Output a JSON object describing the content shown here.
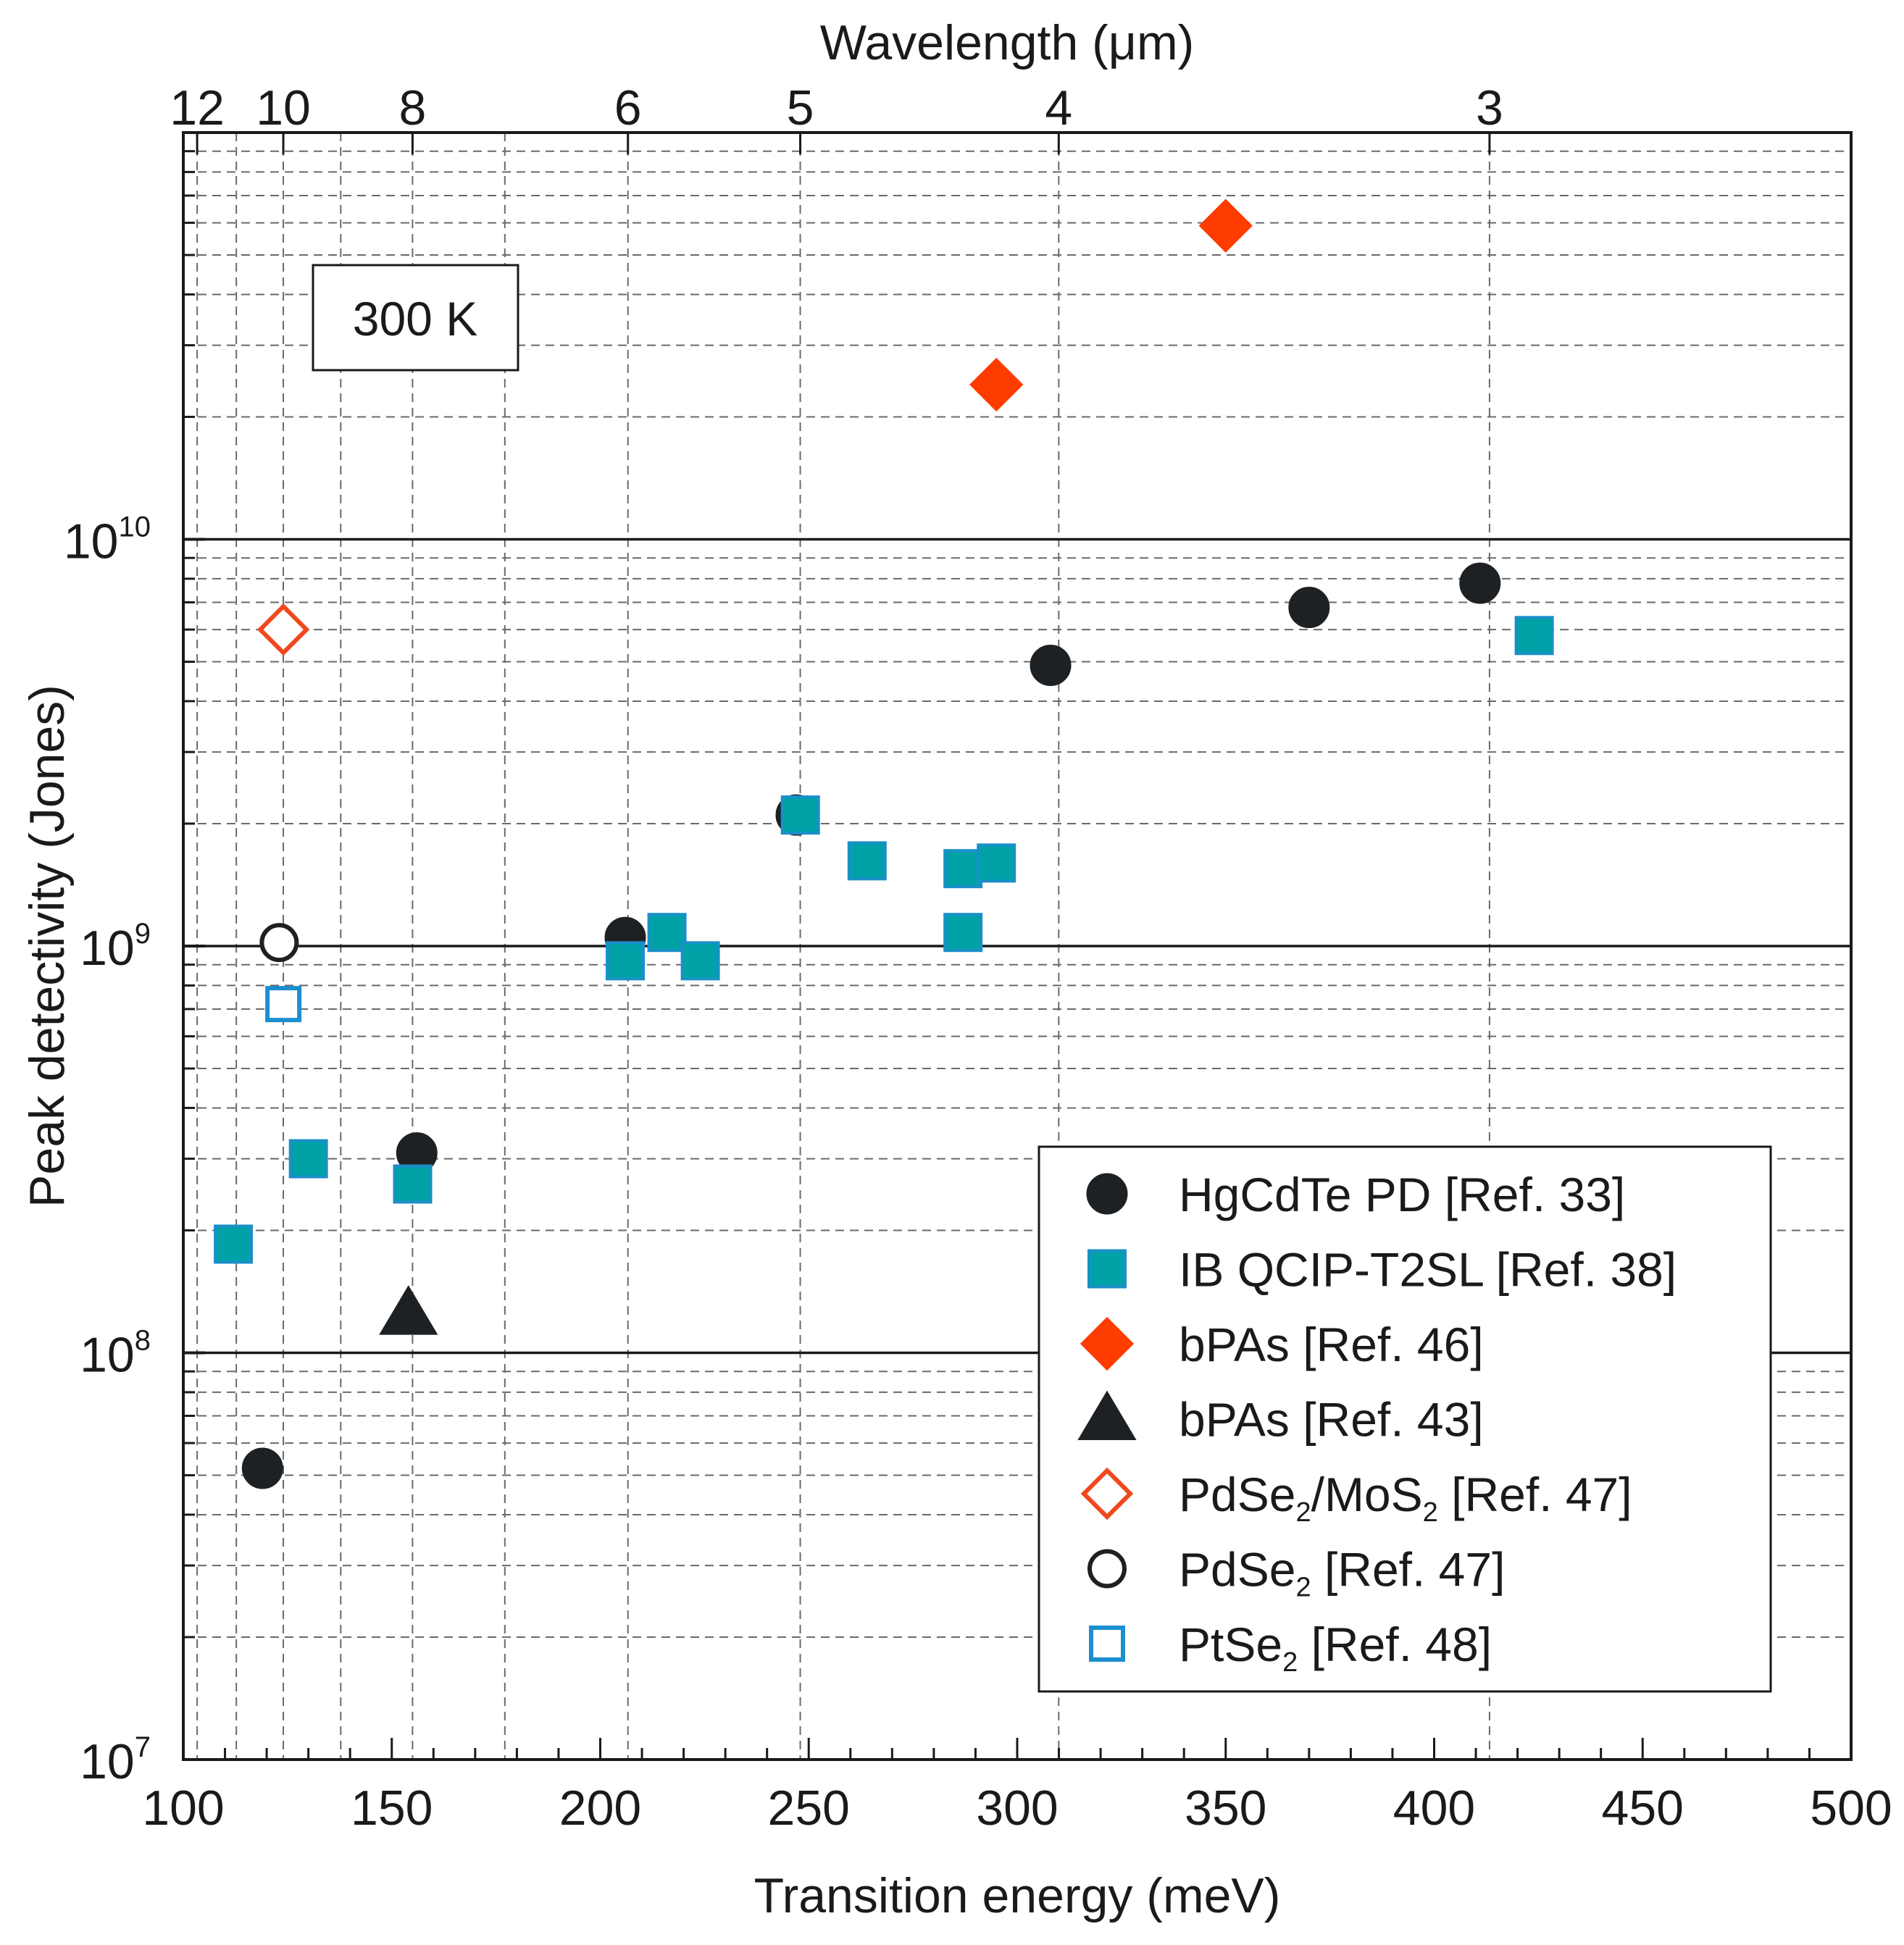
{
  "chart_data": {
    "type": "scatter",
    "xlabel": "Transition energy (meV)",
    "ylabel": "Peak detectivity (Jones)",
    "x2label": "Wavelength (μm)",
    "xlim": [
      100,
      500
    ],
    "ylim": [
      10000000.0,
      100000000000.0
    ],
    "yscale": "log",
    "grid": true,
    "legend_position": "bottom-right",
    "annotation": "300 K",
    "x_ticks": [
      "100",
      "150",
      "200",
      "250",
      "300",
      "350",
      "400",
      "450",
      "500"
    ],
    "x_tick_values": [
      100,
      150,
      200,
      250,
      300,
      350,
      400,
      450,
      500
    ],
    "y_ticks": [
      {
        "value": 10000000.0,
        "base": "10",
        "exp": "7"
      },
      {
        "value": 100000000.0,
        "base": "10",
        "exp": "8"
      },
      {
        "value": 1000000000.0,
        "base": "10",
        "exp": "9"
      },
      {
        "value": 10000000000.0,
        "base": "10",
        "exp": "10"
      }
    ],
    "x2_ticks": [
      "12",
      "10",
      "8",
      "6",
      "5",
      "4",
      "3"
    ],
    "x2_tick_values": [
      12,
      10,
      8,
      6,
      5,
      4,
      3
    ],
    "series": [
      {
        "name": "HgCdTe PD [Ref. 33]",
        "marker": "circle",
        "filled": true,
        "color": "#1e2124",
        "stroke": "#1e2124",
        "points": [
          [
            119,
            52000000.0
          ],
          [
            156,
            310000000.0
          ],
          [
            206,
            1050000000.0
          ],
          [
            247,
            2100000000.0
          ],
          [
            308,
            4900000000.0
          ],
          [
            370,
            6800000000.0
          ],
          [
            411,
            7800000000.0
          ]
        ]
      },
      {
        "name": "IB QCIP-T2SL [Ref. 38]",
        "marker": "square",
        "filled": true,
        "color": "#00a2a8",
        "stroke": "#1b8fc8",
        "points": [
          [
            112,
            185000000.0
          ],
          [
            130,
            300000000.0
          ],
          [
            155,
            260000000.0
          ],
          [
            206,
            920000000.0
          ],
          [
            216,
            1080000000.0
          ],
          [
            224,
            920000000.0
          ],
          [
            248,
            2100000000.0
          ],
          [
            264,
            1620000000.0
          ],
          [
            287,
            1550000000.0
          ],
          [
            287,
            1080000000.0
          ],
          [
            295,
            1600000000.0
          ],
          [
            424,
            5800000000.0
          ]
        ]
      },
      {
        "name": "bPAs [Ref. 46]",
        "marker": "diamond",
        "filled": true,
        "color": "#ff3c00",
        "stroke": "#ff3c00",
        "points": [
          [
            295,
            24000000000.0
          ],
          [
            350,
            59000000000.0
          ]
        ]
      },
      {
        "name": "bPAs [Ref. 43]",
        "marker": "triangle",
        "filled": true,
        "color": "#1e2124",
        "stroke": "#1e2124",
        "points": [
          [
            154,
            125000000.0
          ]
        ]
      },
      {
        "name": "PdSe2/MoS2 [Ref. 47]",
        "marker": "diamond",
        "filled": false,
        "color": "none",
        "stroke": "#f0481e",
        "points": [
          [
            124,
            6000000000.0
          ]
        ]
      },
      {
        "name": "PdSe2 [Ref. 47]",
        "marker": "circle",
        "filled": false,
        "color": "none",
        "stroke": "#1e2124",
        "points": [
          [
            123,
            1020000000.0
          ]
        ]
      },
      {
        "name": "PtSe2 [Ref. 48]",
        "marker": "square",
        "filled": false,
        "color": "none",
        "stroke": "#1b8fd0",
        "points": [
          [
            124,
            720000000.0
          ]
        ]
      }
    ],
    "legend": [
      {
        "marker": "circle",
        "filled": true,
        "color": "#1e2124",
        "stroke": "#1e2124",
        "text": "HgCdTe PD [Ref. 33]"
      },
      {
        "marker": "square",
        "filled": true,
        "color": "#00a2a8",
        "stroke": "#1b8fc8",
        "text": "IB QCIP-T2SL [Ref. 38]"
      },
      {
        "marker": "diamond",
        "filled": true,
        "color": "#ff3c00",
        "stroke": "#ff3c00",
        "text": "bPAs [Ref. 46]"
      },
      {
        "marker": "triangle",
        "filled": true,
        "color": "#1e2124",
        "stroke": "#1e2124",
        "text": "bPAs [Ref. 43]"
      },
      {
        "marker": "diamond",
        "filled": false,
        "color": "none",
        "stroke": "#f0481e",
        "text_parts": [
          "PdSe",
          "2",
          "/MoS",
          "2",
          " [Ref. 47]"
        ]
      },
      {
        "marker": "circle",
        "filled": false,
        "color": "none",
        "stroke": "#1e2124",
        "text_parts": [
          "PdSe",
          "2",
          " [Ref. 47]"
        ]
      },
      {
        "marker": "square",
        "filled": false,
        "color": "none",
        "stroke": "#1b8fd0",
        "text_parts": [
          "PtSe",
          "2",
          " [Ref. 48]"
        ]
      }
    ]
  }
}
